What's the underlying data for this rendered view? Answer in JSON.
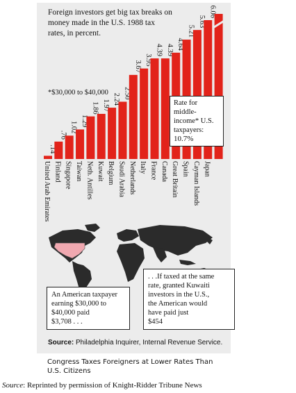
{
  "chart_data": {
    "type": "bar",
    "title": "Foreign investors get big tax breaks on money made in the U.S. 1988 tax rates, in percent.",
    "categories": [
      "United Arab Emirates",
      "Finland",
      "Singapore",
      "Taiwan",
      "Neth. Antilles",
      "Kuwait",
      "Belgium",
      "Saudi Arabia",
      "Netherlands",
      "Italy",
      "France",
      "Canada",
      "Great Britain",
      "Spain",
      "Cayman Islands",
      "Japan"
    ],
    "values": [
      0.14,
      0.76,
      1.02,
      1.29,
      1.86,
      1.97,
      2.24,
      2.5,
      3.67,
      3.95,
      4.39,
      4.39,
      4.64,
      5.21,
      5.63,
      6.06
    ],
    "value_labels": [
      ".14",
      ".76",
      "1.02",
      "1.29",
      "1.86",
      "1.97",
      "2.24",
      "2.50",
      "3.67",
      "3.95",
      "4.39",
      "4.39",
      "4.64",
      "5.21",
      "5.63",
      "6.06"
    ],
    "bar_color": "#e2231a",
    "reference": {
      "label_lines": [
        "Rate for",
        "middle-",
        "income* U.S.",
        "taxpayers:"
      ],
      "value": "10.7%"
    },
    "footnote": "*$30,000 to $40,000"
  },
  "map": {
    "left_callout": [
      "An American taxpayer",
      "earning $30,000 to",
      "$40,000 paid",
      "$3,708 . . ."
    ],
    "right_callout": [
      ". . .If taxed at the same",
      "rate, granted Kuwaiti",
      "investors in the U.S.,",
      "the American would",
      "have paid just",
      "$454"
    ],
    "land_color": "#2b2b2b",
    "highlight_color": "#f0a8b0"
  },
  "source_label": "Source:",
  "source_text": " Philadelphia Inquirer, Internal Revenue Service.",
  "caption": "Congress Taxes Foreigners at Lower Rates Than U.S. Citizens",
  "credit_label": "Source",
  "credit_text": ": Reprinted by permission of Knight-Ridder Tribune News"
}
